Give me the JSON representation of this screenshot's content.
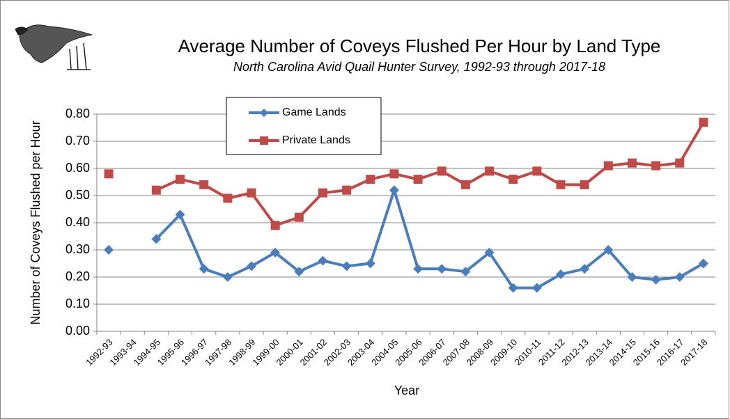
{
  "chart_data": {
    "type": "line",
    "title": "Average Number of Coveys Flushed Per Hour by Land Type",
    "subtitle": "North Carolina Avid Quail Hunter Survey, 1992-93 through 2017-18",
    "x_label": "Year",
    "y_label": "Number of Coveys Flushed per Hour",
    "categories": [
      "1992-93",
      "1993-94",
      "1994-95",
      "1995-96",
      "1996-97",
      "1997-98",
      "1998-99",
      "1999-00",
      "2000-01",
      "2001-02",
      "2002-03",
      "2003-04",
      "2004-05",
      "2005-06",
      "2006-07",
      "2007-08",
      "2008-09",
      "2009-10",
      "2010-11",
      "2011-12",
      "2012-13",
      "2013-14",
      "2014-15",
      "2015-16",
      "2016-17",
      "2017-18"
    ],
    "series": [
      {
        "name": "Game Lands",
        "color": "#4a7ebb",
        "marker": "diamond",
        "values": [
          0.3,
          null,
          0.34,
          0.43,
          0.23,
          0.2,
          0.24,
          0.29,
          0.22,
          0.26,
          0.24,
          0.25,
          0.52,
          0.23,
          0.23,
          0.22,
          0.29,
          0.16,
          0.16,
          0.21,
          0.23,
          0.3,
          0.2,
          0.19,
          0.2,
          0.25
        ]
      },
      {
        "name": "Private Lands",
        "color": "#be4b48",
        "marker": "square",
        "values": [
          0.58,
          null,
          0.52,
          0.56,
          0.54,
          0.49,
          0.51,
          0.39,
          0.42,
          0.51,
          0.52,
          0.56,
          0.58,
          0.56,
          0.59,
          0.54,
          0.59,
          0.56,
          0.59,
          0.54,
          0.54,
          0.61,
          0.62,
          0.61,
          0.62,
          0.77
        ]
      }
    ],
    "ylim": [
      0,
      0.8
    ],
    "yticks": [
      {
        "value": 0,
        "label": "0.00"
      },
      {
        "value": 0.1,
        "label": "0.10"
      },
      {
        "value": 0.2,
        "label": "0.20"
      },
      {
        "value": 0.3,
        "label": "0.30"
      },
      {
        "value": 0.4,
        "label": "0.40"
      },
      {
        "value": 0.5,
        "label": "0.50"
      },
      {
        "value": 0.6,
        "label": "0.60"
      },
      {
        "value": 0.7,
        "label": "0.70"
      },
      {
        "value": 0.8,
        "label": "0.80"
      }
    ],
    "grid": true,
    "legend": "top-left"
  }
}
